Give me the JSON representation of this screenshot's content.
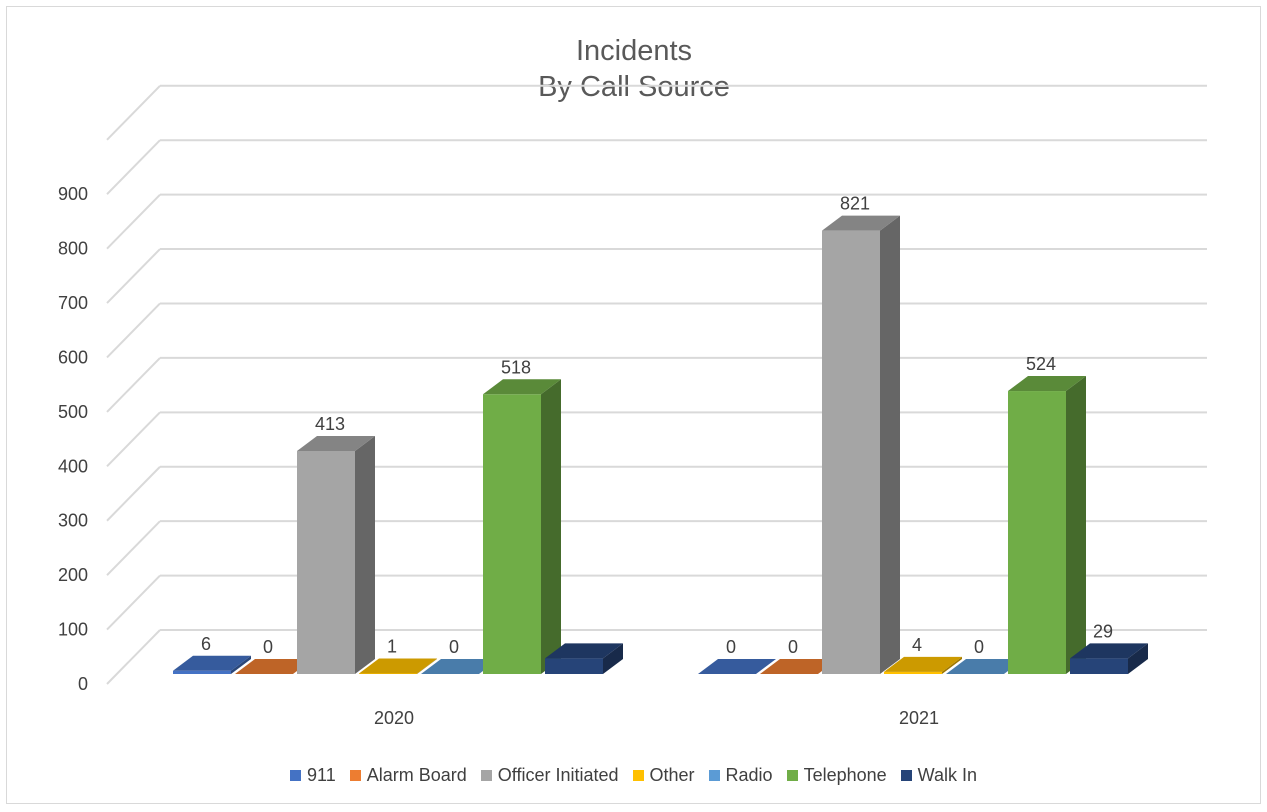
{
  "chart_data": {
    "type": "bar",
    "title_lines": [
      "Incidents",
      "By Call Source"
    ],
    "categories": [
      "2020",
      "2021"
    ],
    "series": [
      {
        "name": "911",
        "values": [
          6,
          0
        ],
        "color": "#4472c4"
      },
      {
        "name": "Alarm Board",
        "values": [
          0,
          0
        ],
        "color": "#ed7d31"
      },
      {
        "name": "Officer Initiated",
        "values": [
          413,
          821
        ],
        "color": "#a5a5a5"
      },
      {
        "name": "Other",
        "values": [
          1,
          4
        ],
        "color": "#ffc000"
      },
      {
        "name": "Radio",
        "values": [
          0,
          0
        ],
        "color": "#5b9bd5"
      },
      {
        "name": "Telephone",
        "values": [
          518,
          524
        ],
        "color": "#70ad47"
      },
      {
        "name": "Walk In",
        "values": [
          29,
          29
        ],
        "color": "#264478"
      }
    ],
    "data_labels": [
      [
        "6",
        "0",
        "413",
        "1",
        "0",
        "518",
        ""
      ],
      [
        "0",
        "0",
        "821",
        "4",
        "0",
        "524",
        "29"
      ]
    ],
    "y_ticks": [
      "0",
      "100",
      "200",
      "300",
      "400",
      "500",
      "600",
      "700",
      "800",
      "900"
    ],
    "ylim": [
      0,
      1000
    ],
    "grid": true,
    "legend_position": "bottom",
    "style": "3d-column"
  }
}
